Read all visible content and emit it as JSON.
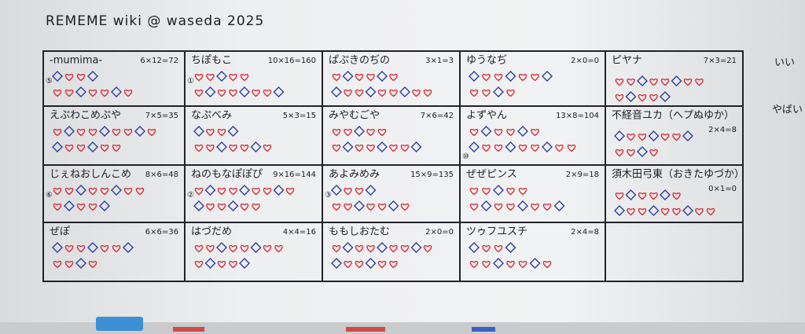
{
  "header": {
    "title": "REMEME wiki @ waseda 2025"
  },
  "table": {
    "rows": [
      [
        {
          "name": "-mumima-",
          "formula": "6×12=72",
          "marker": "⑤"
        },
        {
          "name": "ちぽもこ",
          "formula": "10×16=160",
          "marker": "①"
        },
        {
          "name": "ぱぷきのぢの",
          "formula": "3×1=3"
        },
        {
          "name": "ゆうなぢ",
          "formula": "2×0=0"
        },
        {
          "name": "ピヤナ",
          "formula": "7×3=21"
        }
      ],
      [
        {
          "name": "えぷわこめぷや",
          "formula": "7×5=35"
        },
        {
          "name": "なぷべみ",
          "formula": "5×3=15"
        },
        {
          "name": "みやむごや",
          "formula": "7×6=42"
        },
        {
          "name": "よずやん",
          "formula": "13×8=104",
          "marker": "⑩"
        },
        {
          "name": "不経音ユカ（へプぬゆか）",
          "formula": "2×4=8"
        }
      ],
      [
        {
          "name": "じぇねおしんこめ",
          "formula": "8×6=48",
          "marker": "⑥"
        },
        {
          "name": "ねのもなぽぽぴ",
          "formula": "9×16=144",
          "marker": "②"
        },
        {
          "name": "あよみめみ",
          "formula": "15×9=135",
          "marker": "③"
        },
        {
          "name": "ぜぜピンス",
          "formula": "2×9=18"
        },
        {
          "name": "須木田弓東（おきたゆづか）",
          "formula": "0×1=0"
        }
      ],
      [
        {
          "name": "ぜぽ",
          "formula": "6×6=36"
        },
        {
          "name": "はづだめ",
          "formula": "4×4=16"
        },
        {
          "name": "ももしおたむ",
          "formula": "2×0=0"
        },
        {
          "name": "ツゥフユスチ",
          "formula": "2×4=8"
        }
      ]
    ]
  },
  "side": {
    "labels": [
      "いい",
      "やばい"
    ]
  }
}
